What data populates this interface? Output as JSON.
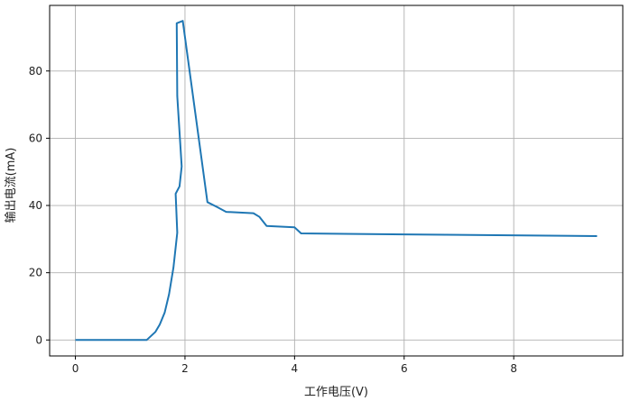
{
  "chart_data": {
    "type": "line",
    "title": "",
    "xlabel": "工作电压(V)",
    "ylabel": "输出电流(mA)",
    "xlim": [
      -0.47,
      9.99
    ],
    "ylim": [
      -4.75,
      99.5
    ],
    "grid": true,
    "x_ticks": [
      0,
      2,
      4,
      6,
      8
    ],
    "y_ticks": [
      0,
      20,
      40,
      60,
      80
    ],
    "x_tick_labels": [
      "0",
      "2",
      "4",
      "6",
      "8"
    ],
    "y_tick_labels": [
      "0",
      "20",
      "40",
      "60",
      "80"
    ],
    "line_color": "#1f77b4",
    "series": [
      {
        "x": [
          0,
          1.3,
          1.46,
          1.54,
          1.63,
          1.71,
          1.79,
          1.86,
          1.83,
          1.9,
          1.94,
          1.86,
          1.85,
          1.96,
          2.41,
          2.59,
          2.75,
          3.25,
          3.36,
          3.49,
          4.0,
          4.12,
          6.0,
          9.52
        ],
        "y": [
          0,
          0,
          2.4,
          4.6,
          8.2,
          13.6,
          21.6,
          31.9,
          43.5,
          45.7,
          51.6,
          72.5,
          94.2,
          94.9,
          41.0,
          39.5,
          38.1,
          37.7,
          36.6,
          33.9,
          33.5,
          31.7,
          31.4,
          30.9
        ]
      }
    ]
  }
}
